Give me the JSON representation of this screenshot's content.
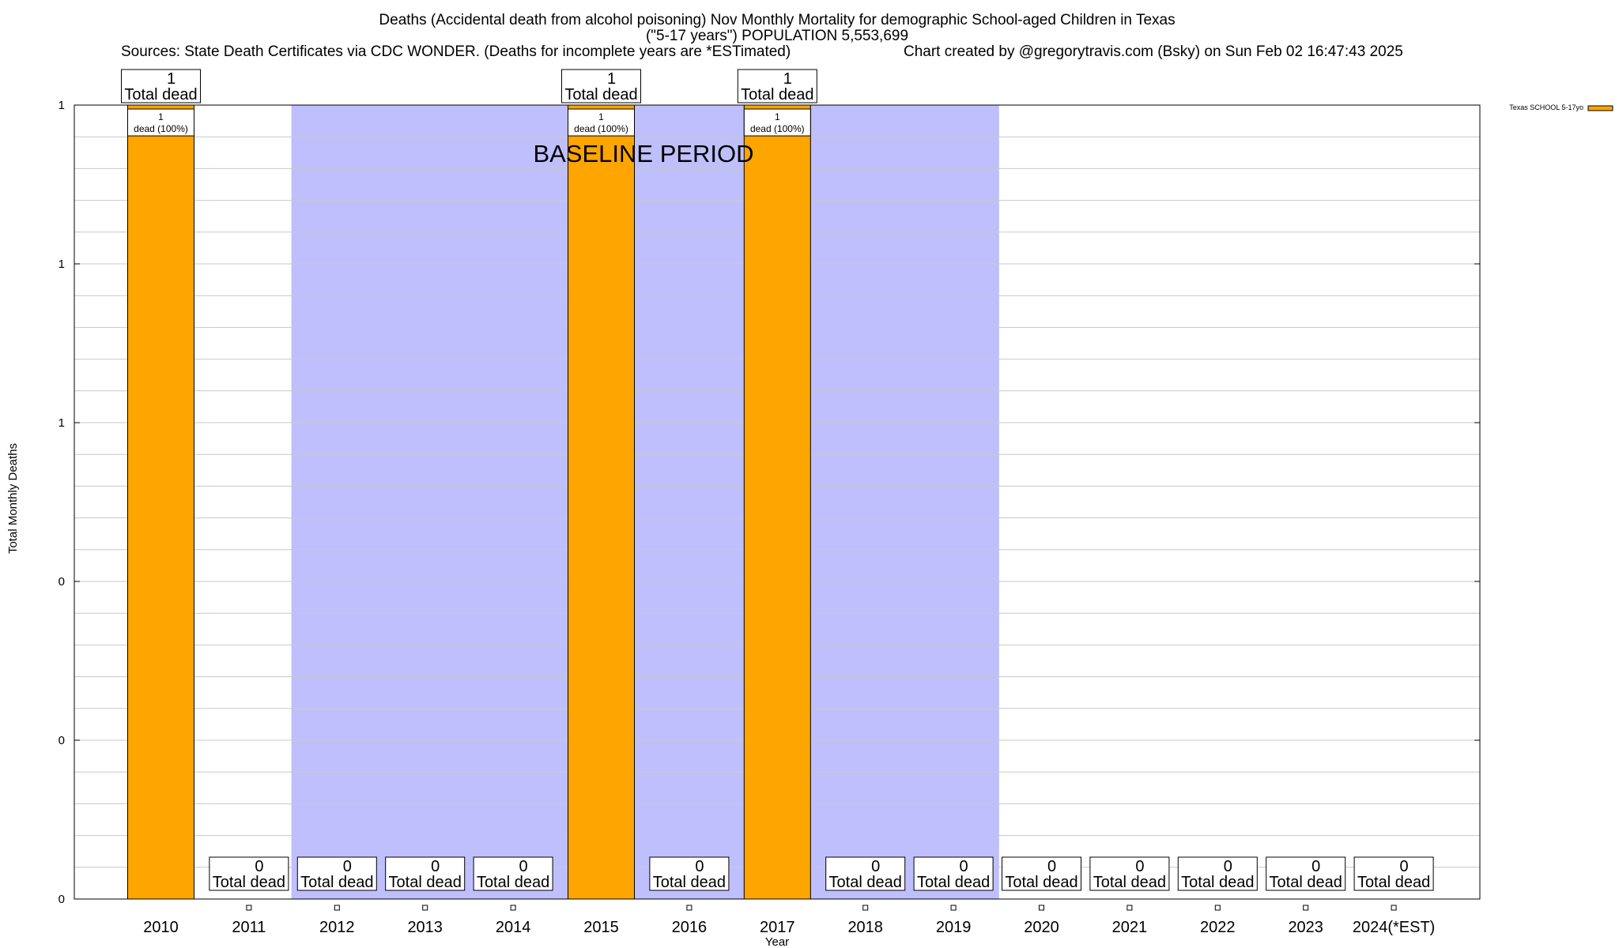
{
  "chart_data": {
    "type": "bar",
    "title_lines": [
      "Deaths (Accidental death from alcohol poisoning) Nov Monthly Mortality for demographic School-aged Children in Texas",
      "(\"5-17 years\") POPULATION 5,553,699"
    ],
    "sources": "Sources: State Death Certificates via CDC WONDER. (Deaths for incomplete years are *ESTimated)",
    "credit": "Chart created by @gregorytravis.com (Bsky) on Sun Feb 02 16:47:43 2025",
    "xlabel": "Year",
    "ylabel": "Total Monthly Deaths",
    "categories": [
      "2010",
      "2011",
      "2012",
      "2013",
      "2014",
      "2015",
      "2016",
      "2017",
      "2018",
      "2019",
      "2020",
      "2021",
      "2022",
      "2023",
      "2024(*EST)"
    ],
    "series": [
      {
        "name": "Texas SCHOOL 5-17yo",
        "color": "#ffa500",
        "values": [
          1,
          0,
          0,
          0,
          0,
          1,
          0,
          1,
          0,
          0,
          0,
          0,
          0,
          0,
          0
        ]
      }
    ],
    "total_label": "Total dead",
    "segment_label_lines": [
      "1",
      "dead (100%)"
    ],
    "ylim": [
      0,
      1
    ],
    "yticks": [
      {
        "value": 0,
        "label": "0"
      },
      {
        "value": 0.2,
        "label": "0"
      },
      {
        "value": 0.4,
        "label": "0"
      },
      {
        "value": 0.6,
        "label": "1"
      },
      {
        "value": 0.8,
        "label": "1"
      },
      {
        "value": 1.0,
        "label": "1"
      }
    ],
    "baseline_period": {
      "label": "BASELINE PERIOD",
      "start": "2012",
      "end": "2019",
      "color": "#bfbffe"
    },
    "grid": true,
    "legend_position": "top-right"
  }
}
